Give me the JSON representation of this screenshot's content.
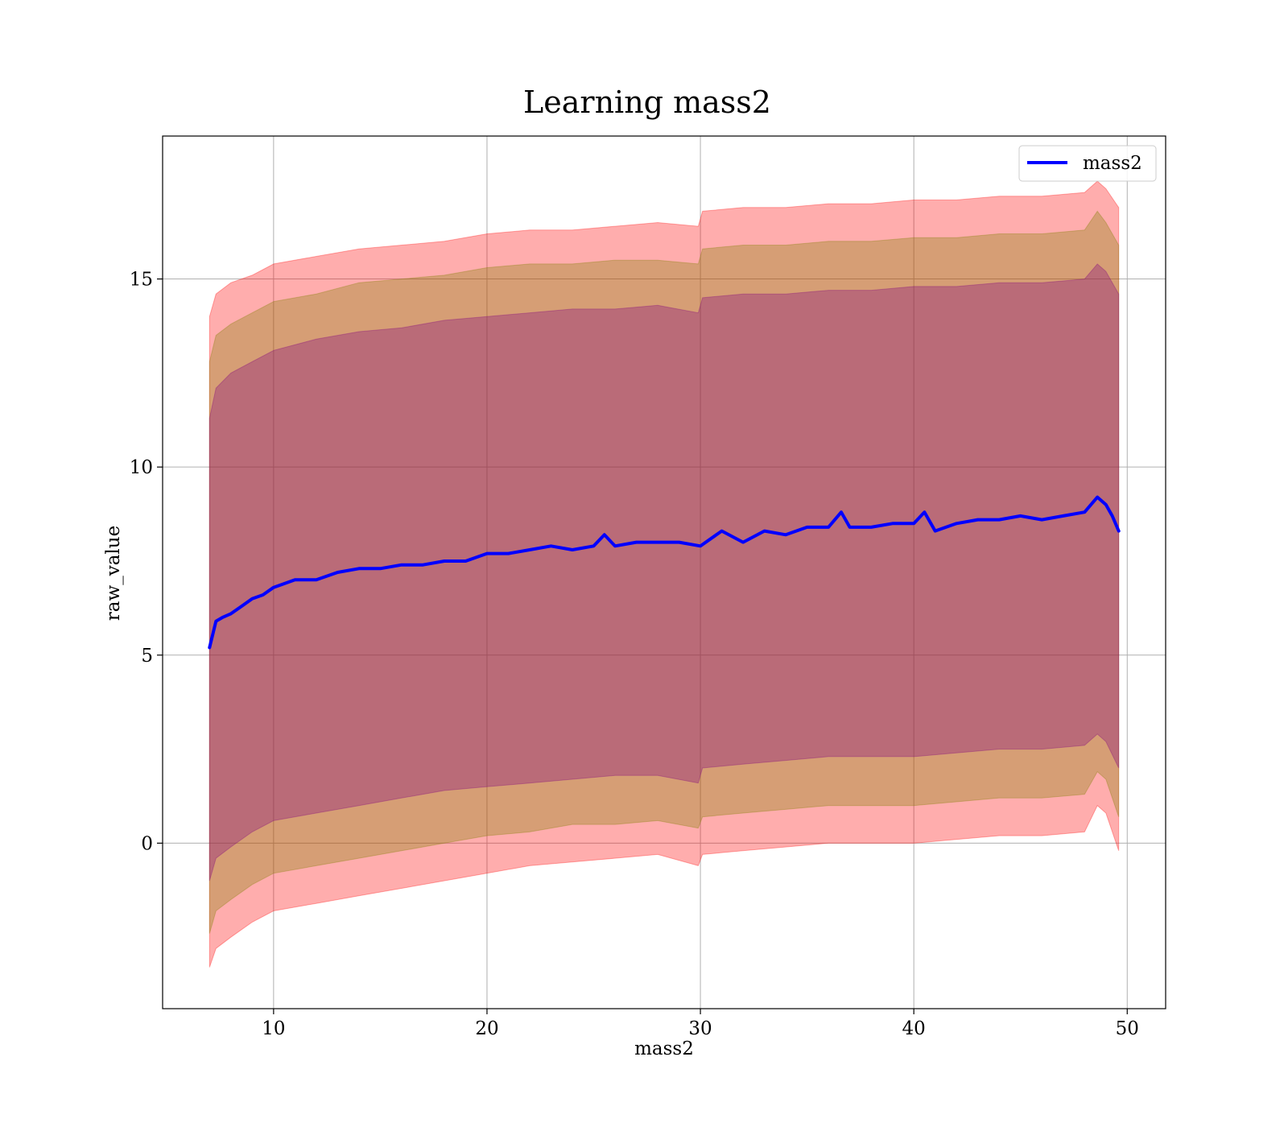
{
  "chart_data": {
    "type": "line",
    "title": "Learning mass2",
    "xlabel": "mass2",
    "ylabel": "raw_value",
    "xlim": [
      4.8,
      51.8
    ],
    "ylim": [
      -4.4,
      18.8
    ],
    "x_ticks": [
      10,
      20,
      30,
      40,
      50
    ],
    "y_ticks": [
      0,
      5,
      10,
      15
    ],
    "grid": true,
    "legend_position": "top-right",
    "series": [
      {
        "name": "mass2",
        "color": "#0000ff",
        "x": [
          7.0,
          7.3,
          7.6,
          8.0,
          8.5,
          9.0,
          9.5,
          10.0,
          11.0,
          12.0,
          13.0,
          14.0,
          15.0,
          16.0,
          17.0,
          18.0,
          19.0,
          20.0,
          21.0,
          22.0,
          23.0,
          24.0,
          25.0,
          25.5,
          26.0,
          27.0,
          28.0,
          29.0,
          30.0,
          31.0,
          32.0,
          33.0,
          34.0,
          35.0,
          36.0,
          36.6,
          37.0,
          38.0,
          39.0,
          40.0,
          40.5,
          41.0,
          42.0,
          43.0,
          44.0,
          45.0,
          46.0,
          47.0,
          48.0,
          48.6,
          49.0,
          49.3,
          49.6
        ],
        "y": [
          5.2,
          5.9,
          6.0,
          6.1,
          6.3,
          6.5,
          6.6,
          6.8,
          7.0,
          7.0,
          7.2,
          7.3,
          7.3,
          7.4,
          7.4,
          7.5,
          7.5,
          7.7,
          7.7,
          7.8,
          7.9,
          7.8,
          7.9,
          8.2,
          7.9,
          8.0,
          8.0,
          8.0,
          7.9,
          8.3,
          8.0,
          8.3,
          8.2,
          8.4,
          8.4,
          8.8,
          8.4,
          8.4,
          8.5,
          8.5,
          8.8,
          8.3,
          8.5,
          8.6,
          8.6,
          8.7,
          8.6,
          8.7,
          8.8,
          9.2,
          9.0,
          8.7,
          8.3
        ]
      }
    ],
    "bands": [
      {
        "color": "#ff0000",
        "opacity": 0.32,
        "x": [
          7.0,
          7.3,
          8.0,
          9.0,
          10.0,
          12.0,
          14.0,
          16.0,
          18.0,
          20.0,
          22.0,
          24.0,
          26.0,
          28.0,
          29.9,
          30.1,
          32.0,
          34.0,
          36.0,
          38.0,
          40.0,
          42.0,
          44.0,
          46.0,
          48.0,
          48.6,
          49.0,
          49.6
        ],
        "upper": [
          14.0,
          14.6,
          14.9,
          15.1,
          15.4,
          15.6,
          15.8,
          15.9,
          16.0,
          16.2,
          16.3,
          16.3,
          16.4,
          16.5,
          16.4,
          16.8,
          16.9,
          16.9,
          17.0,
          17.0,
          17.1,
          17.1,
          17.2,
          17.2,
          17.3,
          17.6,
          17.4,
          16.9
        ],
        "lower": [
          -3.3,
          -2.8,
          -2.5,
          -2.1,
          -1.8,
          -1.6,
          -1.4,
          -1.2,
          -1.0,
          -0.8,
          -0.6,
          -0.5,
          -0.4,
          -0.3,
          -0.6,
          -0.3,
          -0.2,
          -0.1,
          0.0,
          0.0,
          0.0,
          0.1,
          0.2,
          0.2,
          0.3,
          1.0,
          0.8,
          -0.2
        ]
      },
      {
        "color": "#808000",
        "opacity": 0.32,
        "x": [
          7.0,
          7.3,
          8.0,
          9.0,
          10.0,
          12.0,
          14.0,
          16.0,
          18.0,
          20.0,
          22.0,
          24.0,
          26.0,
          28.0,
          29.9,
          30.1,
          32.0,
          34.0,
          36.0,
          38.0,
          40.0,
          42.0,
          44.0,
          46.0,
          48.0,
          48.6,
          49.0,
          49.6
        ],
        "upper": [
          12.8,
          13.5,
          13.8,
          14.1,
          14.4,
          14.6,
          14.9,
          15.0,
          15.1,
          15.3,
          15.4,
          15.4,
          15.5,
          15.5,
          15.4,
          15.8,
          15.9,
          15.9,
          16.0,
          16.0,
          16.1,
          16.1,
          16.2,
          16.2,
          16.3,
          16.8,
          16.5,
          15.9
        ],
        "lower": [
          -2.4,
          -1.8,
          -1.5,
          -1.1,
          -0.8,
          -0.6,
          -0.4,
          -0.2,
          0.0,
          0.2,
          0.3,
          0.5,
          0.5,
          0.6,
          0.4,
          0.7,
          0.8,
          0.9,
          1.0,
          1.0,
          1.0,
          1.1,
          1.2,
          1.2,
          1.3,
          1.9,
          1.7,
          0.7
        ]
      },
      {
        "color": "#800080",
        "opacity": 0.32,
        "x": [
          7.0,
          7.3,
          8.0,
          9.0,
          10.0,
          12.0,
          14.0,
          16.0,
          18.0,
          20.0,
          22.0,
          24.0,
          26.0,
          28.0,
          29.9,
          30.1,
          32.0,
          34.0,
          36.0,
          38.0,
          40.0,
          42.0,
          44.0,
          46.0,
          48.0,
          48.6,
          49.0,
          49.6
        ],
        "upper": [
          11.3,
          12.1,
          12.5,
          12.8,
          13.1,
          13.4,
          13.6,
          13.7,
          13.9,
          14.0,
          14.1,
          14.2,
          14.2,
          14.3,
          14.1,
          14.5,
          14.6,
          14.6,
          14.7,
          14.7,
          14.8,
          14.8,
          14.9,
          14.9,
          15.0,
          15.4,
          15.2,
          14.6
        ],
        "lower": [
          -1.0,
          -0.4,
          -0.1,
          0.3,
          0.6,
          0.8,
          1.0,
          1.2,
          1.4,
          1.5,
          1.6,
          1.7,
          1.8,
          1.8,
          1.6,
          2.0,
          2.1,
          2.2,
          2.3,
          2.3,
          2.3,
          2.4,
          2.5,
          2.5,
          2.6,
          2.9,
          2.7,
          2.0
        ]
      }
    ]
  }
}
